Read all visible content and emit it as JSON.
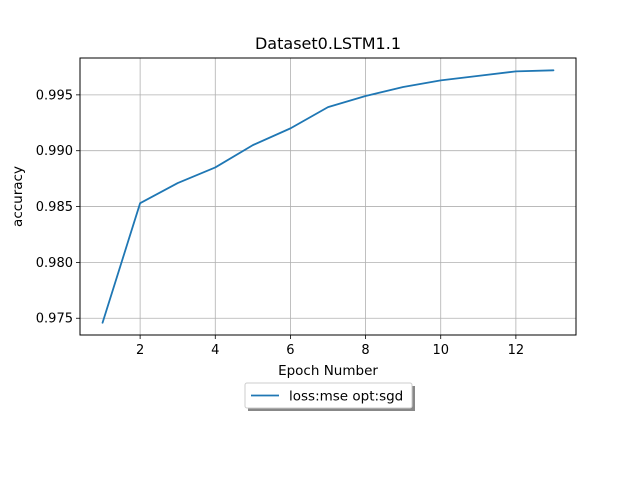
{
  "chart_data": {
    "type": "line",
    "title": "Dataset0.LSTM1.1",
    "xlabel": "Epoch Number",
    "ylabel": "accuracy",
    "xlim": [
      0.4,
      13.6
    ],
    "ylim": [
      0.9735,
      0.9983
    ],
    "x_ticks": [
      2,
      4,
      6,
      8,
      10,
      12
    ],
    "y_ticks": [
      0.975,
      0.98,
      0.985,
      0.99,
      0.995
    ],
    "x_tick_labels": [
      "2",
      "4",
      "6",
      "8",
      "10",
      "12"
    ],
    "y_tick_labels": [
      "0.975",
      "0.980",
      "0.985",
      "0.990",
      "0.995"
    ],
    "grid": true,
    "legend_position": "below",
    "series": [
      {
        "name": "loss:mse opt:sgd",
        "color": "#1f77b4",
        "x": [
          1,
          2,
          3,
          4,
          5,
          6,
          7,
          8,
          9,
          10,
          11,
          12,
          13
        ],
        "y": [
          0.9746,
          0.9853,
          0.9871,
          0.9885,
          0.9905,
          0.992,
          0.9939,
          0.9949,
          0.9957,
          0.9963,
          0.9967,
          0.9971,
          0.9972
        ]
      }
    ]
  }
}
